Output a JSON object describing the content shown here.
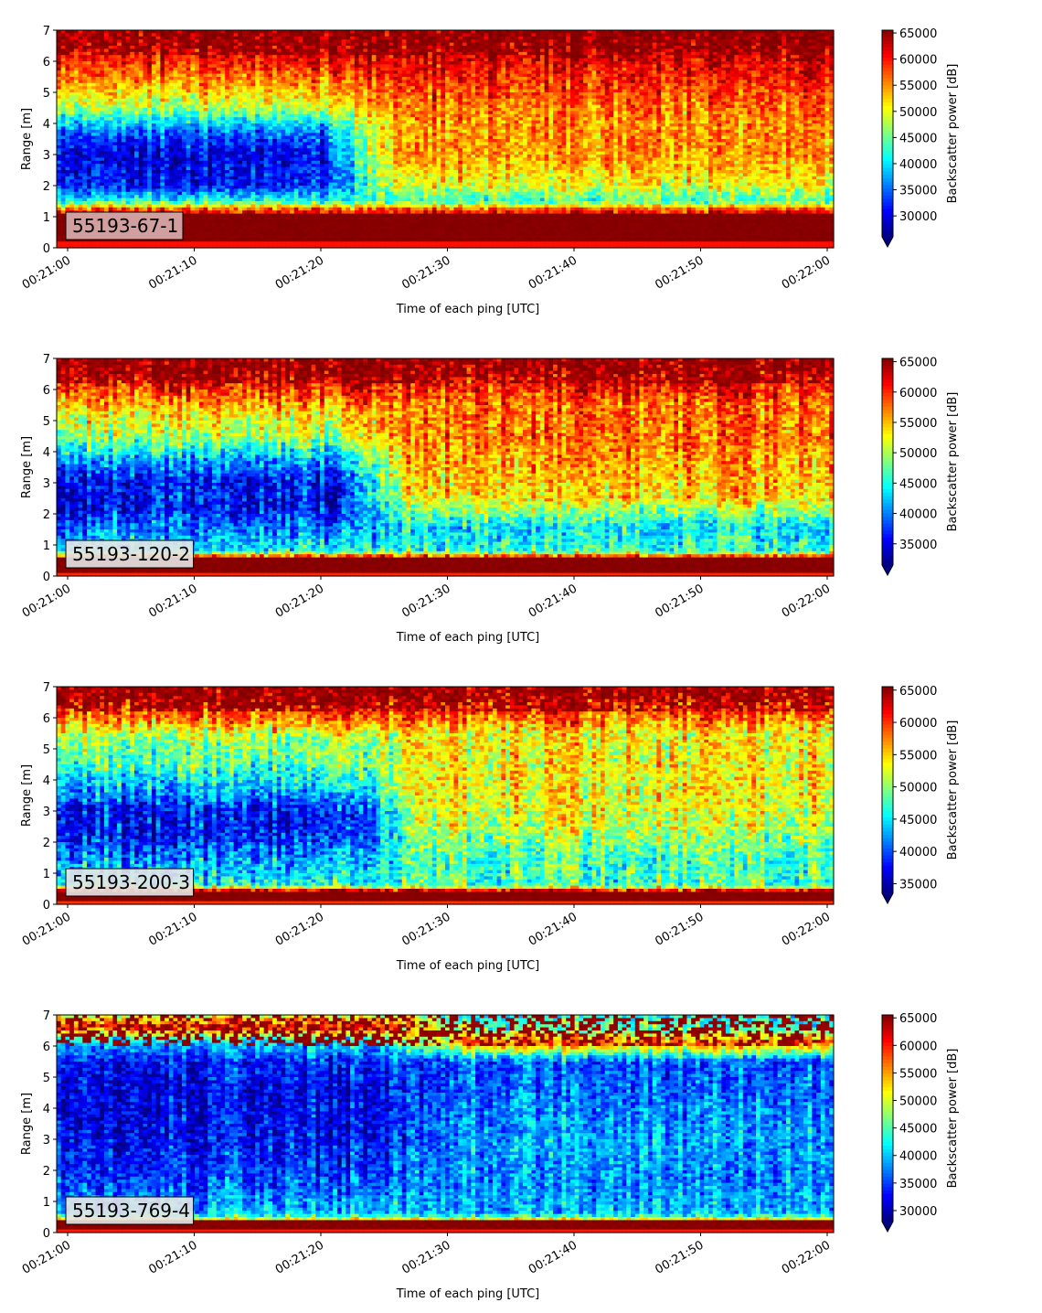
{
  "chart_data": [
    {
      "type": "heatmap",
      "label": "55193-67-1",
      "xlabel": "Time of each ping [UTC]",
      "ylabel": "Range [m]",
      "colorbar_label": "Backscatter power [dB]",
      "xlim": [
        "00:21:00",
        "00:22:00"
      ],
      "ylim": [
        0,
        7
      ],
      "x_ticks": [
        "00:21:00",
        "00:21:10",
        "00:21:20",
        "00:21:30",
        "00:21:40",
        "00:21:50",
        "00:22:00"
      ],
      "y_ticks": [
        "0",
        "1",
        "2",
        "3",
        "4",
        "5",
        "6",
        "7"
      ],
      "colorbar_ticks": [
        "30000",
        "35000",
        "40000",
        "45000",
        "50000",
        "55000",
        "60000",
        "65000"
      ],
      "clim": [
        26000,
        65535
      ],
      "colormap": "jet",
      "colorbar_extend": "min",
      "label_box_color": "#d9b0b0",
      "profile": {
        "bottom_strong_range": [
          0.2,
          1.15
        ],
        "surface_start": 6.2,
        "early_column": [
          [
            0.2,
            65000
          ],
          [
            1.2,
            60000
          ],
          [
            1.5,
            42000
          ],
          [
            2,
            32000
          ],
          [
            3,
            30000
          ],
          [
            3.8,
            36000
          ],
          [
            4.5,
            48000
          ],
          [
            5.2,
            54000
          ],
          [
            6,
            60000
          ],
          [
            6.5,
            63000
          ],
          [
            7,
            65000
          ]
        ],
        "late_column": [
          [
            0.2,
            65000
          ],
          [
            1.2,
            60000
          ],
          [
            1.5,
            43000
          ],
          [
            2,
            50000
          ],
          [
            3,
            55000
          ],
          [
            4,
            55000
          ],
          [
            5,
            58000
          ],
          [
            6,
            62000
          ],
          [
            6.5,
            64000
          ],
          [
            7,
            65000
          ]
        ],
        "transition_time_s": [
          20,
          26
        ]
      }
    },
    {
      "type": "heatmap",
      "label": "55193-120-2",
      "xlabel": "Time of each ping [UTC]",
      "ylabel": "Range [m]",
      "colorbar_label": "Backscatter power [dB]",
      "xlim": [
        "00:21:00",
        "00:22:00"
      ],
      "ylim": [
        0,
        7
      ],
      "x_ticks": [
        "00:21:00",
        "00:21:10",
        "00:21:20",
        "00:21:30",
        "00:21:40",
        "00:21:50",
        "00:22:00"
      ],
      "y_ticks": [
        "0",
        "1",
        "2",
        "3",
        "4",
        "5",
        "6",
        "7"
      ],
      "colorbar_ticks": [
        "35000",
        "40000",
        "45000",
        "50000",
        "55000",
        "60000",
        "65000"
      ],
      "clim": [
        31500,
        65535
      ],
      "colormap": "jet",
      "colorbar_extend": "min",
      "label_box_color": "#e6e6e6",
      "profile": {
        "bottom_strong_range": [
          0.1,
          0.6
        ],
        "surface_start": 6.2,
        "early_column": [
          [
            0.1,
            65000
          ],
          [
            0.6,
            62000
          ],
          [
            0.8,
            44000
          ],
          [
            1.5,
            40000
          ],
          [
            2.2,
            36000
          ],
          [
            3,
            36000
          ],
          [
            3.8,
            42000
          ],
          [
            4.5,
            50000
          ],
          [
            5.3,
            54000
          ],
          [
            6,
            60000
          ],
          [
            6.5,
            64000
          ],
          [
            7,
            65000
          ]
        ],
        "late_column": [
          [
            0.1,
            65000
          ],
          [
            0.6,
            62000
          ],
          [
            0.8,
            46000
          ],
          [
            1.6,
            44000
          ],
          [
            2.5,
            54000
          ],
          [
            3.5,
            56000
          ],
          [
            4.5,
            58000
          ],
          [
            5.5,
            58000
          ],
          [
            6.2,
            62000
          ],
          [
            7,
            65000
          ]
        ],
        "transition_time_s": [
          22,
          27
        ]
      }
    },
    {
      "type": "heatmap",
      "label": "55193-200-3",
      "xlabel": "Time of each ping [UTC]",
      "ylabel": "Range [m]",
      "colorbar_label": "Backscatter power [dB]",
      "xlim": [
        "00:21:00",
        "00:22:00"
      ],
      "ylim": [
        0,
        7
      ],
      "x_ticks": [
        "00:21:00",
        "00:21:10",
        "00:21:20",
        "00:21:30",
        "00:21:40",
        "00:21:50",
        "00:22:00"
      ],
      "y_ticks": [
        "0",
        "1",
        "2",
        "3",
        "4",
        "5",
        "6",
        "7"
      ],
      "colorbar_ticks": [
        "35000",
        "40000",
        "45000",
        "50000",
        "55000",
        "60000",
        "65000"
      ],
      "clim": [
        33500,
        65535
      ],
      "colormap": "jet",
      "colorbar_extend": "min",
      "label_box_color": "#e6e6e6",
      "profile": {
        "bottom_strong_range": [
          0.1,
          0.45
        ],
        "surface_start": 6.2,
        "early_column": [
          [
            0.1,
            65000
          ],
          [
            0.45,
            62000
          ],
          [
            0.6,
            46000
          ],
          [
            1.5,
            42000
          ],
          [
            2.2,
            38000
          ],
          [
            3,
            38000
          ],
          [
            3.8,
            44000
          ],
          [
            4.5,
            48000
          ],
          [
            5.3,
            50000
          ],
          [
            6,
            58000
          ],
          [
            6.5,
            63000
          ],
          [
            7,
            65000
          ]
        ],
        "late_column": [
          [
            0.1,
            65000
          ],
          [
            0.45,
            62000
          ],
          [
            0.6,
            48000
          ],
          [
            1.5,
            48000
          ],
          [
            2.5,
            52000
          ],
          [
            3.5,
            54000
          ],
          [
            4.5,
            54000
          ],
          [
            5.5,
            54000
          ],
          [
            6.2,
            60000
          ],
          [
            7,
            65000
          ]
        ],
        "transition_time_s": [
          23,
          28
        ]
      }
    },
    {
      "type": "heatmap",
      "label": "55193-769-4",
      "xlabel": "Time of each ping [UTC]",
      "ylabel": "Range [m]",
      "colorbar_label": "Backscatter power [dB]",
      "xlim": [
        "00:21:00",
        "00:22:00"
      ],
      "ylim": [
        0,
        7
      ],
      "x_ticks": [
        "00:21:00",
        "00:21:10",
        "00:21:20",
        "00:21:30",
        "00:21:40",
        "00:21:50",
        "00:22:00"
      ],
      "y_ticks": [
        "0",
        "1",
        "2",
        "3",
        "4",
        "5",
        "6",
        "7"
      ],
      "colorbar_ticks": [
        "30000",
        "35000",
        "40000",
        "45000",
        "50000",
        "55000",
        "60000",
        "65000"
      ],
      "clim": [
        28000,
        65535
      ],
      "colormap": "jet",
      "colorbar_extend": "min",
      "label_box_color": "#e6e6e6",
      "profile": {
        "bottom_strong_range": [
          0.15,
          0.35
        ],
        "surface_start": 6.0,
        "early_column": [
          [
            0.15,
            63000
          ],
          [
            0.35,
            58000
          ],
          [
            0.6,
            40000
          ],
          [
            1.5,
            36000
          ],
          [
            3,
            33000
          ],
          [
            4.5,
            32000
          ],
          [
            5.5,
            34000
          ],
          [
            6.2,
            42000
          ],
          [
            6.6,
            60000
          ],
          [
            7,
            50000
          ]
        ],
        "late_column": [
          [
            0.15,
            63000
          ],
          [
            0.35,
            58000
          ],
          [
            0.6,
            40000
          ],
          [
            1.5,
            38000
          ],
          [
            3,
            39000
          ],
          [
            4.5,
            37000
          ],
          [
            5.5,
            36000
          ],
          [
            6.1,
            58000
          ],
          [
            6.5,
            46000
          ],
          [
            7,
            42000
          ]
        ],
        "transition_time_s": [
          24,
          32
        ]
      }
    }
  ]
}
